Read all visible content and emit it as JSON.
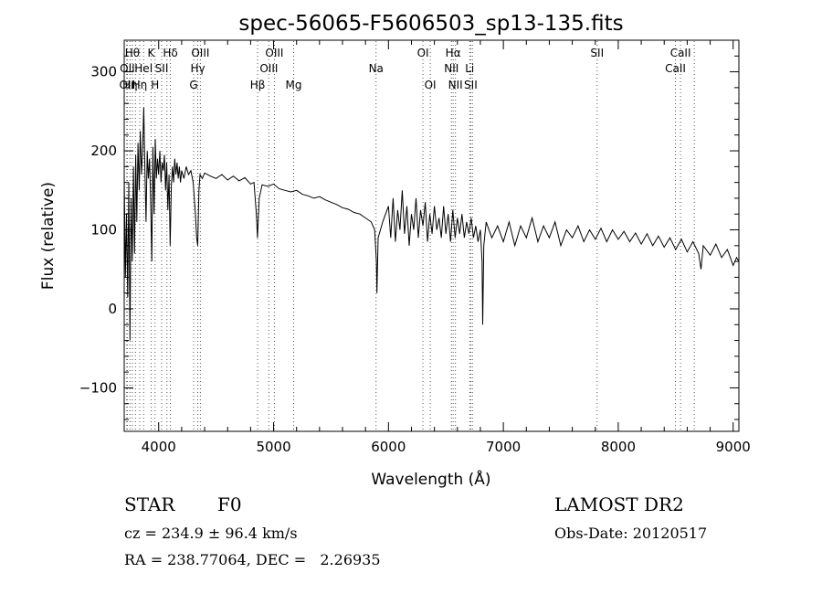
{
  "chart_data": {
    "type": "line",
    "title": "spec-56065-F5606503_sp13-135.fits",
    "xlabel": "Wavelength (Å)",
    "ylabel": "Flux (relative)",
    "xlim": [
      3700,
      9050
    ],
    "ylim": [
      -155,
      340
    ],
    "xticks": [
      4000,
      5000,
      6000,
      7000,
      8000,
      9000
    ],
    "yticks": [
      -100,
      0,
      100,
      200,
      300
    ],
    "grid": false,
    "line_color": "#000000",
    "marker_color": "#555555",
    "series": [
      {
        "values": [
          [
            3700,
            170
          ],
          [
            3710,
            40
          ],
          [
            3720,
            120
          ],
          [
            3730,
            15
          ],
          [
            3740,
            160
          ],
          [
            3750,
            -40
          ],
          [
            3760,
            140
          ],
          [
            3770,
            60
          ],
          [
            3780,
            180
          ],
          [
            3790,
            70
          ],
          [
            3800,
            195
          ],
          [
            3810,
            110
          ],
          [
            3820,
            210
          ],
          [
            3830,
            150
          ],
          [
            3840,
            225
          ],
          [
            3850,
            170
          ],
          [
            3860,
            200
          ],
          [
            3870,
            255
          ],
          [
            3880,
            180
          ],
          [
            3890,
            110
          ],
          [
            3900,
            200
          ],
          [
            3910,
            165
          ],
          [
            3920,
            190
          ],
          [
            3930,
            140
          ],
          [
            3940,
            60
          ],
          [
            3950,
            205
          ],
          [
            3960,
            120
          ],
          [
            3970,
            215
          ],
          [
            3980,
            165
          ],
          [
            3990,
            190
          ],
          [
            4000,
            170
          ],
          [
            4010,
            200
          ],
          [
            4020,
            160
          ],
          [
            4030,
            185
          ],
          [
            4040,
            175
          ],
          [
            4050,
            195
          ],
          [
            4060,
            150
          ],
          [
            4070,
            185
          ],
          [
            4080,
            125
          ],
          [
            4090,
            170
          ],
          [
            4100,
            80
          ],
          [
            4110,
            155
          ],
          [
            4120,
            180
          ],
          [
            4130,
            160
          ],
          [
            4140,
            190
          ],
          [
            4150,
            170
          ],
          [
            4160,
            185
          ],
          [
            4170,
            165
          ],
          [
            4180,
            180
          ],
          [
            4190,
            160
          ],
          [
            4200,
            175
          ],
          [
            4220,
            165
          ],
          [
            4240,
            180
          ],
          [
            4260,
            170
          ],
          [
            4280,
            175
          ],
          [
            4300,
            160
          ],
          [
            4320,
            120
          ],
          [
            4330,
            90
          ],
          [
            4340,
            80
          ],
          [
            4350,
            150
          ],
          [
            4360,
            170
          ],
          [
            4380,
            165
          ],
          [
            4400,
            172
          ],
          [
            4450,
            168
          ],
          [
            4500,
            165
          ],
          [
            4550,
            170
          ],
          [
            4600,
            163
          ],
          [
            4650,
            168
          ],
          [
            4700,
            162
          ],
          [
            4750,
            166
          ],
          [
            4800,
            158
          ],
          [
            4830,
            160
          ],
          [
            4850,
            120
          ],
          [
            4860,
            90
          ],
          [
            4875,
            140
          ],
          [
            4900,
            157
          ],
          [
            4950,
            155
          ],
          [
            5000,
            158
          ],
          [
            5050,
            152
          ],
          [
            5100,
            150
          ],
          [
            5150,
            148
          ],
          [
            5200,
            150
          ],
          [
            5250,
            145
          ],
          [
            5300,
            143
          ],
          [
            5350,
            140
          ],
          [
            5400,
            142
          ],
          [
            5450,
            138
          ],
          [
            5500,
            135
          ],
          [
            5550,
            132
          ],
          [
            5600,
            128
          ],
          [
            5650,
            126
          ],
          [
            5700,
            122
          ],
          [
            5750,
            120
          ],
          [
            5800,
            115
          ],
          [
            5850,
            110
          ],
          [
            5880,
            100
          ],
          [
            5895,
            60
          ],
          [
            5900,
            20
          ],
          [
            5910,
            90
          ],
          [
            5950,
            110
          ],
          [
            6000,
            130
          ],
          [
            6020,
            90
          ],
          [
            6040,
            140
          ],
          [
            6060,
            85
          ],
          [
            6080,
            125
          ],
          [
            6100,
            100
          ],
          [
            6120,
            150
          ],
          [
            6140,
            95
          ],
          [
            6160,
            130
          ],
          [
            6180,
            80
          ],
          [
            6200,
            120
          ],
          [
            6220,
            100
          ],
          [
            6240,
            140
          ],
          [
            6260,
            90
          ],
          [
            6280,
            125
          ],
          [
            6300,
            105
          ],
          [
            6320,
            135
          ],
          [
            6340,
            85
          ],
          [
            6360,
            120
          ],
          [
            6380,
            95
          ],
          [
            6400,
            130
          ],
          [
            6420,
            100
          ],
          [
            6440,
            115
          ],
          [
            6460,
            90
          ],
          [
            6480,
            130
          ],
          [
            6500,
            95
          ],
          [
            6520,
            120
          ],
          [
            6540,
            85
          ],
          [
            6560,
            125
          ],
          [
            6580,
            90
          ],
          [
            6600,
            115
          ],
          [
            6620,
            95
          ],
          [
            6640,
            120
          ],
          [
            6660,
            90
          ],
          [
            6680,
            110
          ],
          [
            6700,
            95
          ],
          [
            6720,
            115
          ],
          [
            6740,
            90
          ],
          [
            6760,
            105
          ],
          [
            6780,
            85
          ],
          [
            6800,
            100
          ],
          [
            6815,
            60
          ],
          [
            6820,
            -20
          ],
          [
            6830,
            80
          ],
          [
            6850,
            110
          ],
          [
            6900,
            90
          ],
          [
            6950,
            105
          ],
          [
            7000,
            85
          ],
          [
            7050,
            110
          ],
          [
            7100,
            80
          ],
          [
            7150,
            105
          ],
          [
            7200,
            90
          ],
          [
            7250,
            115
          ],
          [
            7300,
            85
          ],
          [
            7350,
            105
          ],
          [
            7400,
            90
          ],
          [
            7450,
            110
          ],
          [
            7500,
            80
          ],
          [
            7550,
            100
          ],
          [
            7600,
            90
          ],
          [
            7650,
            105
          ],
          [
            7700,
            85
          ],
          [
            7750,
            100
          ],
          [
            7800,
            88
          ],
          [
            7850,
            102
          ],
          [
            7900,
            85
          ],
          [
            7950,
            100
          ],
          [
            8000,
            88
          ],
          [
            8050,
            98
          ],
          [
            8100,
            85
          ],
          [
            8150,
            96
          ],
          [
            8200,
            82
          ],
          [
            8250,
            95
          ],
          [
            8300,
            80
          ],
          [
            8350,
            92
          ],
          [
            8400,
            78
          ],
          [
            8450,
            90
          ],
          [
            8500,
            75
          ],
          [
            8550,
            88
          ],
          [
            8600,
            72
          ],
          [
            8650,
            85
          ],
          [
            8700,
            70
          ],
          [
            8720,
            50
          ],
          [
            8740,
            80
          ],
          [
            8800,
            68
          ],
          [
            8850,
            82
          ],
          [
            8900,
            65
          ],
          [
            8950,
            75
          ],
          [
            9000,
            55
          ],
          [
            9030,
            65
          ],
          [
            9050,
            60
          ]
        ]
      }
    ],
    "lines": [
      {
        "x": 3722,
        "labels": [
          "OII"
        ],
        "row": 2
      },
      {
        "x": 3727,
        "labels": [
          "OII"
        ],
        "row": 1
      },
      {
        "x": 3750,
        "labels": [
          "Hη"
        ],
        "row": 2
      },
      {
        "x": 3771,
        "labels": [
          "Hθ"
        ],
        "row": 0
      },
      {
        "x": 3798,
        "labels": [],
        "row": -1
      },
      {
        "x": 3835,
        "labels": [
          "Hη"
        ],
        "row": 2
      },
      {
        "x": 3869,
        "labels": [
          "HeI"
        ],
        "row": 1
      },
      {
        "x": 3934,
        "labels": [
          "K"
        ],
        "row": 0
      },
      {
        "x": 3968,
        "labels": [
          "H"
        ],
        "row": 2
      },
      {
        "x": 4026,
        "labels": [
          "SII"
        ],
        "row": 1
      },
      {
        "x": 4072,
        "labels": [],
        "row": -1
      },
      {
        "x": 4102,
        "labels": [
          "Hδ"
        ],
        "row": 0
      },
      {
        "x": 4304,
        "labels": [
          "G"
        ],
        "row": 2
      },
      {
        "x": 4340,
        "labels": [
          "Hγ"
        ],
        "row": 1
      },
      {
        "x": 4363,
        "labels": [
          "OIII"
        ],
        "row": 0
      },
      {
        "x": 4861,
        "labels": [
          "Hβ"
        ],
        "row": 2
      },
      {
        "x": 4959,
        "labels": [
          "OIII"
        ],
        "row": 1
      },
      {
        "x": 5007,
        "labels": [
          "OIII"
        ],
        "row": 0
      },
      {
        "x": 5175,
        "labels": [
          "Mg"
        ],
        "row": 2
      },
      {
        "x": 5892,
        "labels": [
          "Na"
        ],
        "row": 1
      },
      {
        "x": 6300,
        "labels": [
          "OI"
        ],
        "row": 0
      },
      {
        "x": 6364,
        "labels": [
          "OI"
        ],
        "row": 2
      },
      {
        "x": 6548,
        "labels": [
          "NII"
        ],
        "row": 1
      },
      {
        "x": 6563,
        "labels": [
          "Hα"
        ],
        "row": 0
      },
      {
        "x": 6583,
        "labels": [
          "NII"
        ],
        "row": 2
      },
      {
        "x": 6707,
        "labels": [
          "Li"
        ],
        "row": 1
      },
      {
        "x": 6716,
        "labels": [
          "SII"
        ],
        "row": 2
      },
      {
        "x": 6731,
        "labels": [],
        "row": -1
      },
      {
        "x": 7816,
        "labels": [
          "SII"
        ],
        "row": 0
      },
      {
        "x": 8498,
        "labels": [
          "CaII"
        ],
        "row": 1
      },
      {
        "x": 8542,
        "labels": [
          "CaII"
        ],
        "row": 0
      },
      {
        "x": 8662,
        "labels": [],
        "row": -1
      }
    ]
  },
  "footer": {
    "class_label": "STAR",
    "subclass_label": "F0",
    "survey": "LAMOST DR2",
    "cz": "cz = 234.9 ± 96.4 km/s",
    "obs_date": "Obs-Date: 20120517",
    "radec": "RA = 238.77064, DEC =   2.26935"
  }
}
